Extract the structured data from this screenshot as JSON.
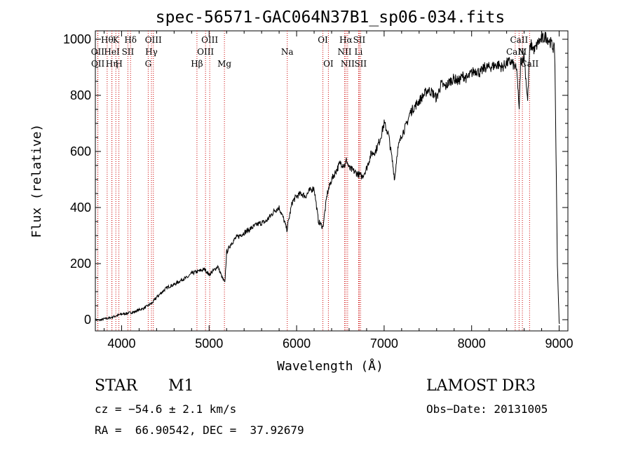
{
  "chart_data": {
    "type": "line",
    "title": "spec-56571-GAC064N37B1_sp06-034.fits",
    "xlabel": "Wavelength (Å)",
    "ylabel": "Flux (relative)",
    "xlim": [
      3700,
      9100
    ],
    "ylim": [
      -40,
      1030
    ],
    "xticks": [
      4000,
      5000,
      6000,
      7000,
      8000,
      9000
    ],
    "yticks": [
      0,
      200,
      400,
      600,
      800,
      1000
    ],
    "series": [
      {
        "name": "spectrum",
        "x": [
          3700,
          3750,
          3800,
          3850,
          3900,
          3950,
          4000,
          4050,
          4100,
          4150,
          4200,
          4250,
          4300,
          4350,
          4400,
          4450,
          4500,
          4550,
          4600,
          4650,
          4700,
          4750,
          4800,
          4850,
          4900,
          4950,
          5000,
          5050,
          5100,
          5150,
          5180,
          5200,
          5250,
          5300,
          5350,
          5400,
          5450,
          5500,
          5550,
          5600,
          5650,
          5700,
          5750,
          5800,
          5850,
          5890,
          5900,
          5950,
          6000,
          6050,
          6100,
          6150,
          6200,
          6250,
          6300,
          6350,
          6400,
          6450,
          6500,
          6550,
          6570,
          6600,
          6650,
          6700,
          6750,
          6800,
          6850,
          6900,
          6950,
          7000,
          7050,
          7100,
          7120,
          7150,
          7200,
          7250,
          7300,
          7350,
          7400,
          7450,
          7500,
          7550,
          7600,
          7650,
          7700,
          7750,
          7800,
          7850,
          7900,
          7950,
          8000,
          8050,
          8100,
          8150,
          8200,
          8250,
          8300,
          8350,
          8400,
          8450,
          8498,
          8520,
          8542,
          8560,
          8600,
          8640,
          8662,
          8680,
          8720,
          8760,
          8800,
          8850,
          8900,
          8950,
          8980,
          9000,
          9005
        ],
        "y": [
          0,
          -2,
          3,
          5,
          10,
          15,
          20,
          22,
          25,
          28,
          35,
          40,
          50,
          60,
          80,
          95,
          110,
          120,
          125,
          135,
          145,
          150,
          165,
          170,
          175,
          180,
          160,
          175,
          190,
          150,
          130,
          240,
          270,
          290,
          300,
          310,
          320,
          330,
          340,
          345,
          350,
          370,
          390,
          400,
          360,
          320,
          340,
          420,
          440,
          450,
          440,
          460,
          470,
          350,
          330,
          450,
          500,
          530,
          560,
          550,
          570,
          540,
          530,
          520,
          510,
          540,
          590,
          600,
          640,
          700,
          660,
          550,
          500,
          600,
          660,
          690,
          740,
          760,
          780,
          800,
          820,
          810,
          790,
          840,
          830,
          850,
          860,
          850,
          870,
          860,
          880,
          890,
          880,
          900,
          900,
          905,
          910,
          900,
          915,
          920,
          900,
          880,
          740,
          920,
          940,
          780,
          960,
          980,
          960,
          990,
          1000,
          1010,
          990,
          960,
          200,
          -10,
          -20
        ]
      }
    ],
    "lines": [
      {
        "name": "H9",
        "label": "Hθ",
        "x": 3835,
        "row": 0
      },
      {
        "name": "OII",
        "label": "OII",
        "x": 3727,
        "row": 1
      },
      {
        "name": "OII-b",
        "label": "OII",
        "x": 3729,
        "row": 2
      },
      {
        "name": "He-I",
        "label": "HeI",
        "x": 3889,
        "row": 1
      },
      {
        "name": "H-eta",
        "label": "Hη",
        "x": 3889,
        "row": 2
      },
      {
        "name": "K",
        "label": "K",
        "x": 3934,
        "row": 0
      },
      {
        "name": "H",
        "label": "H",
        "x": 3969,
        "row": 2
      },
      {
        "name": "SII-4072",
        "label": "SII",
        "x": 4072,
        "row": 1
      },
      {
        "name": "H-delta",
        "label": "Hδ",
        "x": 4102,
        "row": 0
      },
      {
        "name": "G",
        "label": "G",
        "x": 4304,
        "row": 2
      },
      {
        "name": "H-gamma",
        "label": "Hγ",
        "x": 4341,
        "row": 1
      },
      {
        "name": "OIII-4363",
        "label": "OIII",
        "x": 4363,
        "row": 0
      },
      {
        "name": "H-beta",
        "label": "Hβ",
        "x": 4861,
        "row": 2
      },
      {
        "name": "OIII-4959",
        "label": "OIII",
        "x": 4959,
        "row": 1
      },
      {
        "name": "OIII-5007",
        "label": "OIII",
        "x": 5007,
        "row": 0
      },
      {
        "name": "Mg",
        "label": "Mg",
        "x": 5175,
        "row": 2
      },
      {
        "name": "Na",
        "label": "Na",
        "x": 5893,
        "row": 1
      },
      {
        "name": "OI-6300",
        "label": "OI",
        "x": 6300,
        "row": 0
      },
      {
        "name": "OI-6363",
        "label": "OI",
        "x": 6363,
        "row": 2
      },
      {
        "name": "NII-6548",
        "label": "NII",
        "x": 6548,
        "row": 1
      },
      {
        "name": "H-alpha",
        "label": "Hα",
        "x": 6563,
        "row": 0
      },
      {
        "name": "NII-6583",
        "label": "NII",
        "x": 6583,
        "row": 2
      },
      {
        "name": "Li",
        "label": "Li",
        "x": 6708,
        "row": 1
      },
      {
        "name": "SII-6716",
        "label": "SII",
        "x": 6716,
        "row": 0
      },
      {
        "name": "SII-6731",
        "label": "SII",
        "x": 6731,
        "row": 2
      },
      {
        "name": "CaII-8498",
        "label": "CaII",
        "x": 8498,
        "row": 1
      },
      {
        "name": "CaII-8542",
        "label": "CaII",
        "x": 8542,
        "row": 0
      },
      {
        "name": "CaII-8662",
        "label": "CaII",
        "x": 8662,
        "row": 2
      },
      {
        "name": "M",
        "label": "M",
        "x": 8580,
        "row": 1
      }
    ]
  },
  "footer": {
    "class_label": "STAR",
    "subclass": "M1",
    "survey": "LAMOST DR3",
    "cz": "cz = −54.6 ± 2.1 km/s",
    "obs_date": "Obs−Date: 20131005",
    "coords": "RA =  66.90542, DEC =  37.92679"
  },
  "colors": {
    "line_marker": "#cc0000",
    "spectrum": "#000000"
  }
}
